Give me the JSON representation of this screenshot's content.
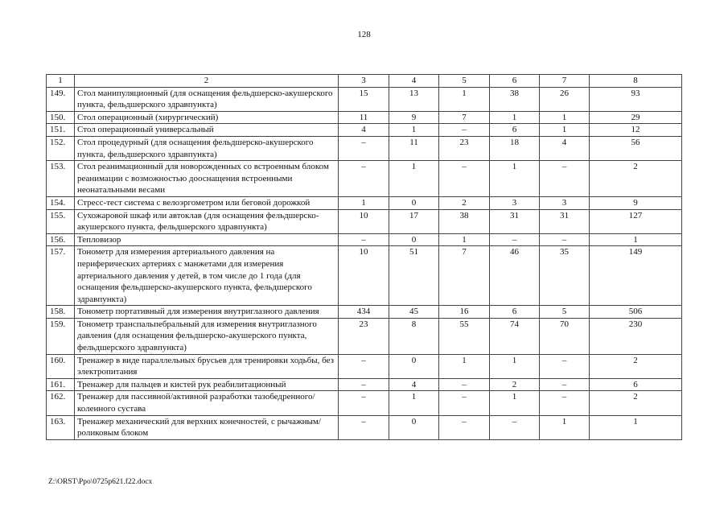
{
  "page_number": "128",
  "table": {
    "headers": [
      "1",
      "2",
      "3",
      "4",
      "5",
      "6",
      "7",
      "8"
    ],
    "rows": [
      [
        "149.",
        "Стол манипуляционный (для оснащения фельдшерско-акушерского пункта, фельдшерского здравпункта)",
        "15",
        "13",
        "1",
        "38",
        "26",
        "93"
      ],
      [
        "150.",
        "Стол операционный (хирургический)",
        "11",
        "9",
        "7",
        "1",
        "1",
        "29"
      ],
      [
        "151.",
        "Стол операционный универсальный",
        "4",
        "1",
        "–",
        "6",
        "1",
        "12"
      ],
      [
        "152.",
        "Стол процедурный (для оснащения фельдшерско-акушерского пункта, фельдшерского здравпункта)",
        "–",
        "11",
        "23",
        "18",
        "4",
        "56"
      ],
      [
        "153.",
        "Стол реанимационный для новорожденных со встроенным блоком реанимации с возможностью дооснащения встроенными неонатальными весами",
        "–",
        "1",
        "–",
        "1",
        "–",
        "2"
      ],
      [
        "154.",
        "Стресс-тест система с велоэргометром или беговой дорожкой",
        "1",
        "0",
        "2",
        "3",
        "3",
        "9"
      ],
      [
        "155.",
        "Сухожаровой шкаф или автоклав (для оснащения фельдшерско-акушерского пункта, фельдшерского здравпункта)",
        "10",
        "17",
        "38",
        "31",
        "31",
        "127"
      ],
      [
        "156.",
        "Тепловизор",
        "–",
        "0",
        "1",
        "–",
        "–",
        "1"
      ],
      [
        "157.",
        "Тонометр для измерения артериального давления на периферических артериях с манжетами для измерения артериального давления у детей, в том числе до 1 года (для оснащения фельдшерско-акушерского пункта, фельдшерского здравпункта)",
        "10",
        "51",
        "7",
        "46",
        "35",
        "149"
      ],
      [
        "158.",
        "Тонометр портативный для измерения внутриглазного давления",
        "434",
        "45",
        "16",
        "6",
        "5",
        "506"
      ],
      [
        "159.",
        "Тонометр транспальпебральный для измерения внутриглазного давления (для оснащения фельдшерско-акушерского пункта, фельдшерского здравпункта)",
        "23",
        "8",
        "55",
        "74",
        "70",
        "230"
      ],
      [
        "160.",
        "Тренажер в виде параллельных брусьев для тренировки ходьбы, без электропитания",
        "–",
        "0",
        "1",
        "1",
        "–",
        "2"
      ],
      [
        "161.",
        "Тренажер для пальцев и кистей рук реабилитационный",
        "–",
        "4",
        "–",
        "2",
        "–",
        "6"
      ],
      [
        "162.",
        "Тренажер для пассивной/активной разработки тазобедренного/коленного сустава",
        "–",
        "1",
        "–",
        "1",
        "–",
        "2"
      ],
      [
        "163.",
        "Тренажер механический для верхних конечностей, с рычажным/роликовым блоком",
        "–",
        "0",
        "–",
        "–",
        "1",
        "1"
      ]
    ]
  },
  "footer": "Z:\\ORST\\Ppo\\0725p621.f22.docx"
}
